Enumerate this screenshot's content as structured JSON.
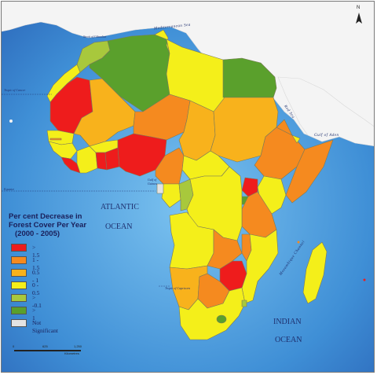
{
  "map": {
    "ocean_labels": {
      "atlantic": "ATLANTIC",
      "atlantic_ocean": "OCEAN",
      "indian": "INDIAN",
      "indian_ocean": "OCEAN"
    },
    "sea_labels": {
      "mediterranean": "Mediterranean Sea",
      "red_sea": "Red Sea",
      "gulf_of_aden": "Gulf of Aden",
      "gulf_of_guinea_1": "Gulf of",
      "gulf_of_guinea_2": "Guinea",
      "mozambique_channel": "Mozambique Channel",
      "strait_gibraltar": "Strait of Gibraltar"
    },
    "lines": {
      "tropic_cancer": "Tropic of Cancer",
      "equator": "Equator",
      "tropic_capricorn": "Tropic of Capricorn"
    },
    "north_label": "N",
    "colors": {
      "ocean": "#4f9fdb",
      "gt_1_5": "#ee1c1c",
      "r1_1_5": "#f58a1f",
      "r0_5_1": "#f8b21c",
      "r0_0_5": "#f4ef1a",
      "gt_neg0_1": "#a8c83c",
      "gt_neg1": "#5aa02c",
      "not_significant": "#e3e3e3",
      "non_africa": "#f3f3f3"
    }
  },
  "legend": {
    "title_line1": "Per cent Decrease in",
    "title_line2": "Forest Cover Per Year",
    "title_line3": "(2000 - 2005)",
    "items": [
      {
        "label": "> 1.5",
        "color": "#ee1c1c"
      },
      {
        "label": "1 - 1.5",
        "color": "#f58a1f"
      },
      {
        "label": "0.5 - 1",
        "color": "#f8b21c"
      },
      {
        "label": "0 - 0.5",
        "color": "#f4ef1a"
      },
      {
        "label": "> -0.1",
        "color": "#a8c83c"
      },
      {
        "label": "> 1",
        "color": "#5aa02c"
      },
      {
        "label": "Not Significant",
        "color": "#e3e3e3"
      }
    ]
  },
  "scale": {
    "labels": [
      "0",
      "625",
      "1,250"
    ],
    "unit": "Kilometres"
  }
}
